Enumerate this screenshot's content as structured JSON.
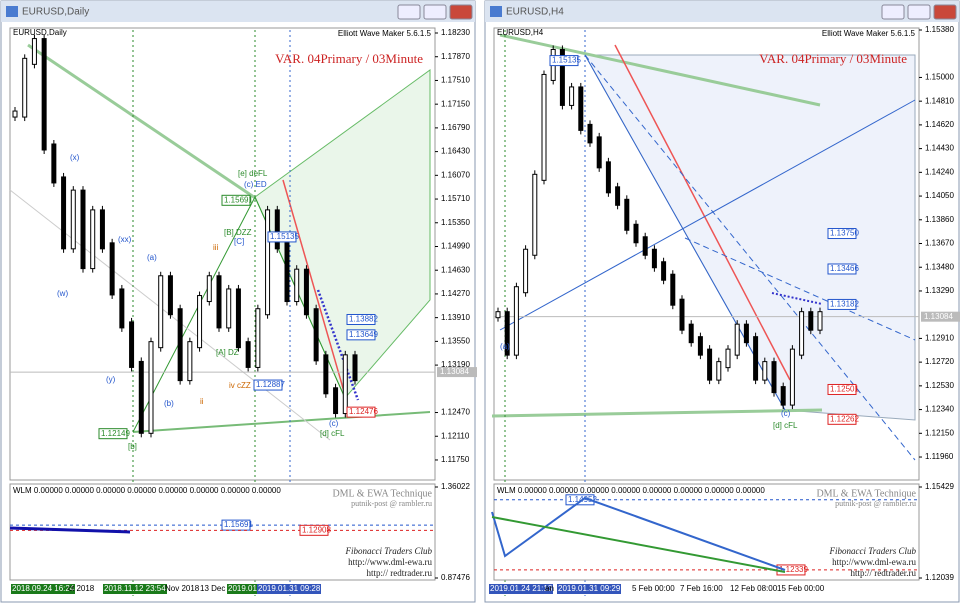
{
  "windows": [
    {
      "title": "EURUSD,Daily",
      "symbol": "EURUSD,Daily",
      "tool": "Elliott Wave Maker 5.6.1.5",
      "variant": "VAR. 04Primary / 03Minute",
      "ylim": [
        1.11446,
        1.18306
      ],
      "yticks": [
        {
          "value": 1.1823,
          "label": "1.18230"
        },
        {
          "value": 1.1787,
          "label": "1.17870"
        },
        {
          "value": 1.1751,
          "label": "1.17510"
        },
        {
          "value": 1.1715,
          "label": "1.17150"
        },
        {
          "value": 1.1679,
          "label": "1.16790"
        },
        {
          "value": 1.1643,
          "label": "1.16430"
        },
        {
          "value": 1.1607,
          "label": "1.16070"
        },
        {
          "value": 1.1571,
          "label": "1.15710"
        },
        {
          "value": 1.1535,
          "label": "1.15350"
        },
        {
          "value": 1.1499,
          "label": "1.14990"
        },
        {
          "value": 1.1463,
          "label": "1.14630"
        },
        {
          "value": 1.1427,
          "label": "1.14270"
        },
        {
          "value": 1.1391,
          "label": "1.13910"
        },
        {
          "value": 1.1355,
          "label": "1.13550"
        },
        {
          "value": 1.1319,
          "label": "1.13190"
        },
        {
          "value": 1.1247,
          "label": "1.12470"
        },
        {
          "value": 1.1211,
          "label": "1.12110"
        },
        {
          "value": 1.1175,
          "label": "1.11750"
        }
      ],
      "current_price": 1.13084,
      "price": [
        1.17,
        1.178,
        1.181,
        1.165,
        1.16,
        1.15,
        1.158,
        1.147,
        1.155,
        1.15,
        1.143,
        1.138,
        1.132,
        1.122,
        1.135,
        1.145,
        1.14,
        1.13,
        1.135,
        1.142,
        1.145,
        1.138,
        1.143,
        1.135,
        1.132,
        1.14,
        1.155,
        1.15,
        1.142,
        1.146,
        1.14,
        1.133,
        1.128,
        1.125,
        1.133,
        1.13
      ],
      "levels": [
        1.15691,
        1.15135,
        1.13882,
        1.13649,
        1.12887,
        1.12149,
        1.12476
      ],
      "wave_labels": [
        "[e] deFL",
        "(c) ED",
        "[B] DZZ",
        "[C]",
        "(xx)",
        "(w)",
        "(x)",
        "(y)",
        "(a)",
        "(b)",
        "iii",
        "iv cZZ",
        "[A] DZ",
        "[b]",
        "[d] cFL",
        "ii",
        "(c)"
      ],
      "indicator": {
        "header": "WLM 0.00000 0.00000 0.00000 0.00000 0.00000 0.00000 0.00000 0.00000",
        "ylim": [
          0.86409,
          1.37623
        ],
        "yticks": [
          1.36022,
          0.87476
        ],
        "levels": [
          1.15691,
          1.12908
        ]
      },
      "credits": [
        "DML & EWA Technique",
        "putnik-post @ rambler.ru",
        "Fibonacci Traders Club",
        "http://www.dml-ewa.ru",
        "http:// redtrader.ru"
      ],
      "time_labels": [
        "2018.09.24 16:24",
        "ct 2018",
        "2018.11.12 23:54",
        "Nov 2018",
        "13 Dec",
        "2019.01.",
        "2019.01.31 09:28"
      ]
    },
    {
      "title": "EURUSD,H4",
      "symbol": "EURUSD,H4",
      "tool": "Elliott Wave Maker 5.6.1.5",
      "variant": "VAR. 04Primary / 03Minute",
      "ylim": [
        1.11776,
        1.15396
      ],
      "yticks": [
        {
          "value": 1.1538,
          "label": "1.15380"
        },
        {
          "value": 1.15,
          "label": "1.15000"
        },
        {
          "value": 1.1481,
          "label": "1.14810"
        },
        {
          "value": 1.1462,
          "label": "1.14620"
        },
        {
          "value": 1.1443,
          "label": "1.14430"
        },
        {
          "value": 1.1424,
          "label": "1.14240"
        },
        {
          "value": 1.1405,
          "label": "1.14050"
        },
        {
          "value": 1.1386,
          "label": "1.13860"
        },
        {
          "value": 1.1367,
          "label": "1.13670"
        },
        {
          "value": 1.1348,
          "label": "1.13480"
        },
        {
          "value": 1.1329,
          "label": "1.13290"
        },
        {
          "value": 1.1291,
          "label": "1.12910"
        },
        {
          "value": 1.1272,
          "label": "1.12720"
        },
        {
          "value": 1.1253,
          "label": "1.12530"
        },
        {
          "value": 1.1234,
          "label": "1.12340"
        },
        {
          "value": 1.1215,
          "label": "1.12150"
        },
        {
          "value": 1.1196,
          "label": "1.11960"
        }
      ],
      "current_price": 1.13084,
      "price": [
        1.131,
        1.128,
        1.133,
        1.136,
        1.142,
        1.15,
        1.152,
        1.148,
        1.149,
        1.146,
        1.145,
        1.143,
        1.141,
        1.14,
        1.138,
        1.137,
        1.136,
        1.135,
        1.134,
        1.132,
        1.13,
        1.129,
        1.128,
        1.126,
        1.127,
        1.128,
        1.13,
        1.129,
        1.126,
        1.127,
        1.125,
        1.124,
        1.128,
        1.131,
        1.13,
        1.131
      ],
      "levels": [
        1.15135,
        {
          "value": 1.1375,
          "label": "1.13750"
        },
        1.13466,
        1.13182,
        1.12501,
        1.12262
      ],
      "wave_labels": [
        "(a)",
        "(c)",
        "[d] cFL"
      ],
      "indicator": {
        "header": "WLM 0.00000 0.00000 0.00000 0.00000 0.00000 0.00000 0.00000 0.00000",
        "ylim": [
          1.11964,
          1.15541
        ],
        "yticks": [
          1.15429,
          1.12039
        ],
        "levels": [
          1.14952,
          1.12339
        ]
      },
      "credits": [
        "DML & EWA Technique",
        "putnik-post @ rambler.ru",
        "Fibonacci Traders Club",
        "http://www.dml-ewa.ru",
        "http:// redtrader.ru"
      ],
      "time_labels": [
        "2019.01.24 21:13",
        "an",
        "2019.01.31 09:29",
        "5 Feb 00:00",
        "7 Feb 16:00",
        "12 Feb 08:00",
        "15 Feb 00:00"
      ]
    }
  ]
}
